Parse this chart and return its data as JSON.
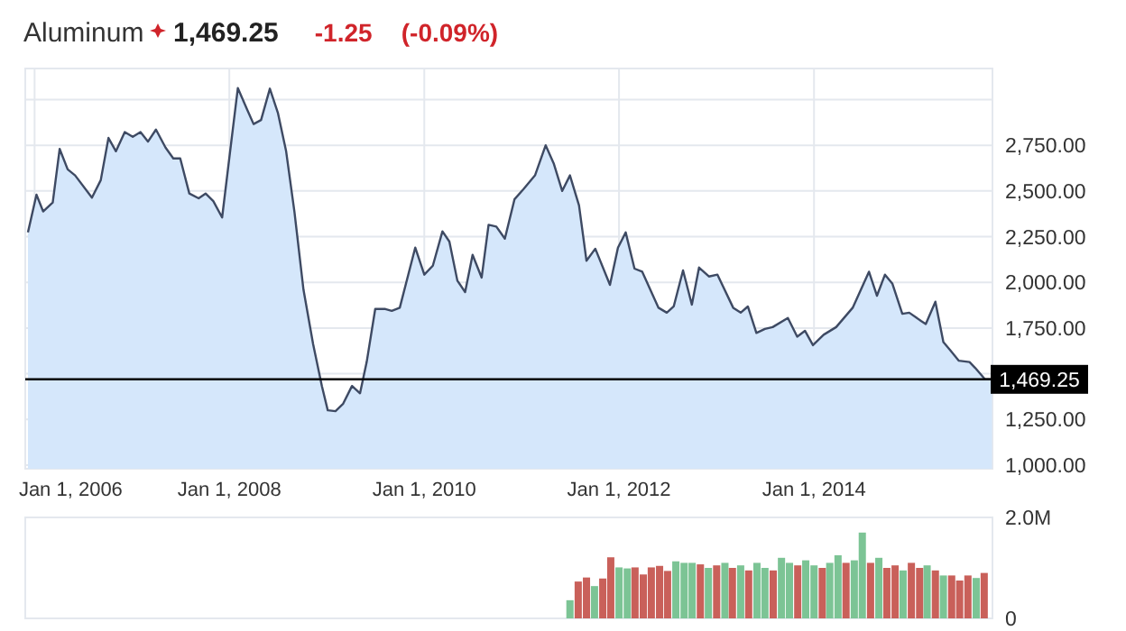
{
  "chart_data": [
    {
      "type": "area",
      "title": "Aluminum",
      "annotations": [
        "1,469.25",
        "-1.25",
        "(-0.09%)"
      ],
      "series": [
        {
          "color": "#3e4a63",
          "x": [
            "2005-12-07",
            "2006-01-08",
            "2006-02-02",
            "2006-03-10",
            "2006-04-05",
            "2006-05-05",
            "2006-06-02",
            "2006-08-04",
            "2006-09-06",
            "2006-10-05",
            "2006-11-02",
            "2006-12-05",
            "2007-01-04",
            "2007-02-02",
            "2007-03-02",
            "2007-04-01",
            "2007-05-07",
            "2007-06-05",
            "2007-07-01",
            "2007-08-04",
            "2007-09-08",
            "2007-10-04",
            "2007-11-02",
            "2007-12-05",
            "2008-01-04",
            "2008-02-02",
            "2008-03-07",
            "2008-04-01",
            "2008-04-29",
            "2008-06-01",
            "2008-07-01",
            "2008-08-01",
            "2008-09-01",
            "2008-10-05",
            "2008-11-10",
            "2008-12-13",
            "2009-01-04",
            "2009-02-02",
            "2009-03-02",
            "2009-04-05",
            "2009-05-05",
            "2009-05-30",
            "2009-07-01",
            "2009-08-08",
            "2009-09-01",
            "2009-10-01",
            "2009-11-28",
            "2010-01-01",
            "2010-02-02",
            "2010-03-10",
            "2010-04-05",
            "2010-05-05",
            "2010-06-03",
            "2010-07-01",
            "2010-08-04",
            "2010-08-30",
            "2010-09-28",
            "2010-10-30",
            "2010-12-05",
            "2011-01-08",
            "2011-02-20",
            "2011-04-01",
            "2011-05-01",
            "2011-06-02",
            "2011-07-01",
            "2011-08-04",
            "2011-09-01",
            "2011-10-04",
            "2011-11-28",
            "2011-12-28",
            "2012-01-26",
            "2012-02-28",
            "2012-03-28",
            "2012-05-28",
            "2012-06-28",
            "2012-07-24",
            "2012-08-28",
            "2012-09-30",
            "2012-10-27",
            "2012-12-03",
            "2013-01-04",
            "2013-03-04",
            "2013-04-01",
            "2013-04-28",
            "2013-05-30",
            "2013-07-01",
            "2013-07-30",
            "2013-09-25",
            "2013-10-30",
            "2013-11-28",
            "2013-12-28",
            "2014-02-06",
            "2014-03-25",
            "2014-05-26",
            "2014-07-26",
            "2014-08-25",
            "2014-09-24",
            "2014-10-22",
            "2014-11-28",
            "2014-12-24",
            "2015-02-06",
            "2015-02-24",
            "2015-04-01",
            "2015-05-01",
            "2015-05-26",
            "2015-06-28",
            "2015-08-07",
            "2015-08-28",
            "2015-10-04",
            "2015-10-30"
          ],
          "values": [
            2273,
            2480,
            2388,
            2437,
            2730,
            2618,
            2585,
            2463,
            2559,
            2790,
            2717,
            2822,
            2796,
            2822,
            2770,
            2836,
            2737,
            2678,
            2678,
            2486,
            2460,
            2486,
            2444,
            2355,
            2717,
            3063,
            2948,
            2866,
            2888,
            3060,
            2928,
            2717,
            2388,
            1960,
            1663,
            1433,
            1300,
            1295,
            1334,
            1433,
            1393,
            1564,
            1854,
            1854,
            1844,
            1861,
            2190,
            2042,
            2091,
            2279,
            2223,
            2009,
            1947,
            2150,
            2026,
            2315,
            2305,
            2239,
            2454,
            2510,
            2585,
            2750,
            2651,
            2500,
            2585,
            2421,
            2118,
            2184,
            1986,
            2190,
            2273,
            2075,
            2058,
            1861,
            1834,
            1868,
            2065,
            1878,
            2081,
            2032,
            2042,
            1861,
            1834,
            1868,
            1723,
            1745,
            1755,
            1805,
            1703,
            1735,
            1656,
            1713,
            1755,
            1861,
            2058,
            1927,
            2042,
            1992,
            1828,
            1834,
            1789,
            1772,
            1894,
            1673,
            1630,
            1571,
            1564,
            1532,
            1469.25,
            1469.25
          ]
        }
      ],
      "xlim": [
        "2005-11-27",
        "2015-11-01"
      ],
      "xticks": [
        {
          "value": "2006-01-01",
          "label": "Jan 1, 2006"
        },
        {
          "value": "2008-01-01",
          "label": "Jan 1, 2008"
        },
        {
          "value": "2010-01-01",
          "label": "Jan 1, 2010"
        },
        {
          "value": "2012-01-01",
          "label": "Jan 1, 2012"
        },
        {
          "value": "2014-01-01",
          "label": "Jan 1, 2014"
        }
      ],
      "ylim": [
        980,
        3170
      ],
      "yticks": [
        {
          "value": 1000,
          "label": "1,000.00"
        },
        {
          "value": 1250,
          "label": "1,250.00"
        },
        {
          "value": 1500,
          "label": null
        },
        {
          "value": 1750,
          "label": "1,750.00"
        },
        {
          "value": 2000,
          "label": "2,000.00"
        },
        {
          "value": 2250,
          "label": "2,250.00"
        },
        {
          "value": 2500,
          "label": "2,500.00"
        },
        {
          "value": 2750,
          "label": "2,750.00"
        },
        {
          "value": 3000,
          "label": null
        }
      ],
      "ref_lines": [
        {
          "axis": "y",
          "value": 1469.25,
          "label": "1,469.25",
          "color": "#000000"
        }
      ],
      "grid": true
    },
    {
      "type": "bar",
      "tick_labels": "y",
      "grid": true,
      "x": [
        "2011-07",
        "2011-08",
        "2011-09",
        "2011-10",
        "2011-11",
        "2011-12",
        "2012-01",
        "2012-02",
        "2012-03",
        "2012-04",
        "2012-05",
        "2012-06",
        "2012-07",
        "2012-08",
        "2012-09",
        "2012-10",
        "2012-11",
        "2012-12",
        "2013-01",
        "2013-02",
        "2013-03",
        "2013-04",
        "2013-05",
        "2013-06",
        "2013-07",
        "2013-08",
        "2013-09",
        "2013-10",
        "2013-11",
        "2013-12",
        "2014-01",
        "2014-02",
        "2014-03",
        "2014-04",
        "2014-05",
        "2014-06",
        "2014-07",
        "2014-08",
        "2014-09",
        "2014-10",
        "2014-11",
        "2014-12",
        "2015-01",
        "2015-02",
        "2015-03",
        "2015-04",
        "2015-05",
        "2015-06",
        "2015-07",
        "2015-08",
        "2015-09",
        "2015-10"
      ],
      "values": [
        360000,
        730000,
        810000,
        640000,
        790000,
        1210000,
        1010000,
        990000,
        1010000,
        870000,
        1010000,
        1040000,
        940000,
        1130000,
        1100000,
        1100000,
        1070000,
        1000000,
        1050000,
        1100000,
        1000000,
        1050000,
        950000,
        1100000,
        1000000,
        950000,
        1200000,
        1100000,
        1050000,
        1150000,
        1050000,
        1000000,
        1100000,
        1250000,
        1100000,
        1150000,
        1700000,
        1100000,
        1200000,
        1000000,
        1050000,
        950000,
        1100000,
        1000000,
        1050000,
        950000,
        850000,
        850000,
        750000,
        850000,
        800000,
        900000
      ],
      "colors": [
        "#7cc495",
        "#c9605a",
        "#c9605a",
        "#7cc495",
        "#c9605a",
        "#c9605a",
        "#7cc495",
        "#7cc495",
        "#c9605a",
        "#c9605a",
        "#c9605a",
        "#c9605a",
        "#c9605a",
        "#7cc495",
        "#7cc495",
        "#7cc495",
        "#c9605a",
        "#7cc495",
        "#c9605a",
        "#7cc495",
        "#c9605a",
        "#7cc495",
        "#c9605a",
        "#7cc495",
        "#7cc495",
        "#c9605a",
        "#7cc495",
        "#7cc495",
        "#c9605a",
        "#7cc495",
        "#7cc495",
        "#c9605a",
        "#7cc495",
        "#7cc495",
        "#c9605a",
        "#7cc495",
        "#7cc495",
        "#c9605a",
        "#7cc495",
        "#c9605a",
        "#c9605a",
        "#7cc495",
        "#c9605a",
        "#c9605a",
        "#7cc495",
        "#c9605a",
        "#7cc495",
        "#c9605a",
        "#c9605a",
        "#c9605a",
        "#7cc495",
        "#c9605a"
      ],
      "xlim": [
        "2005-11-27",
        "2015-11-01"
      ],
      "ylim": [
        0,
        2000000
      ],
      "yticks": [
        0,
        {
          "value": 2000000,
          "label": "2.0M"
        }
      ]
    }
  ]
}
